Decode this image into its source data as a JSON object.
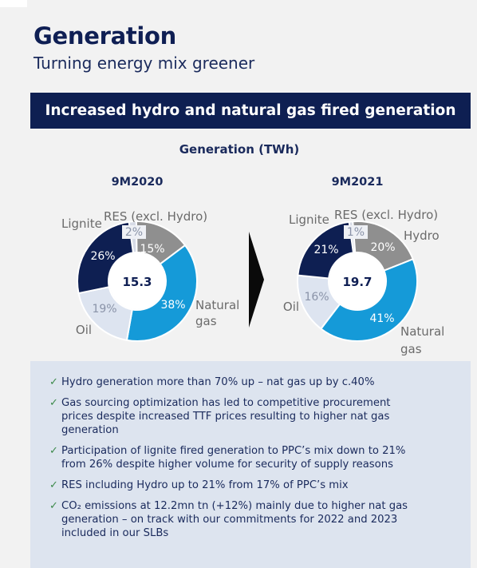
{
  "page": {
    "title": "Generation",
    "subtitle": "Turning energy mix greener",
    "banner": "Increased hydro and natural gas fired generation"
  },
  "chart_data": {
    "type": "pie",
    "title": "Generation (TWh)",
    "variant": "donut",
    "category_labels": [
      "RES (excl. Hydro)",
      "Hydro",
      "Natural gas",
      "Oil",
      "Lignite"
    ],
    "colors": {
      "RES (excl. Hydro)": "#d7dbe6",
      "Hydro": "#8f8f8f",
      "Natural gas": "#159ad8",
      "Oil": "#dde4f0",
      "Lignite": "#0e1f52"
    },
    "charts": [
      {
        "period": "9M2020",
        "total": "15.3",
        "slices": [
          {
            "category": "RES (excl. Hydro)",
            "value": 2,
            "label": "2%"
          },
          {
            "category": "Hydro",
            "value": 15,
            "label": "15%"
          },
          {
            "category": "Natural gas",
            "value": 38,
            "label": "38%"
          },
          {
            "category": "Oil",
            "value": 19,
            "label": "19%"
          },
          {
            "category": "Lignite",
            "value": 26,
            "label": "26%"
          }
        ]
      },
      {
        "period": "9M2021",
        "total": "19.7",
        "slices": [
          {
            "category": "RES (excl. Hydro)",
            "value": 1,
            "label": "1%"
          },
          {
            "category": "Hydro",
            "value": 20,
            "label": "20%"
          },
          {
            "category": "Natural gas",
            "value": 41,
            "label": "41%"
          },
          {
            "category": "Oil",
            "value": 16,
            "label": "16%"
          },
          {
            "category": "Lignite",
            "value": 21,
            "label": "21%"
          }
        ]
      }
    ]
  },
  "bullets": [
    {
      "lines": [
        "Hydro generation more than 70% up – nat gas up by c.40%"
      ]
    },
    {
      "lines": [
        "Gas sourcing optimization has led to competitive procurement",
        "prices despite increased TTF prices resulting to higher nat gas",
        "generation"
      ]
    },
    {
      "lines": [
        "Participation of lignite fired generation to PPC’s mix down to 21%",
        "from 26% despite higher volume for security of supply reasons"
      ]
    },
    {
      "lines": [
        "RES including Hydro up to 21% from 17% of PPC’s mix"
      ]
    },
    {
      "lines": [
        "CO₂ emissions at 12.2mn tn (+12%) mainly due to higher nat gas",
        "generation – on track with our commitments for 2022 and 2023",
        "included in our SLBs"
      ]
    }
  ]
}
